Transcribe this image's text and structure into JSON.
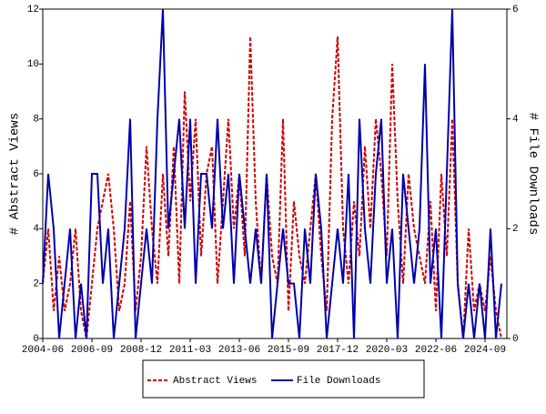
{
  "chart_data": {
    "type": "line",
    "x": [
      "2004-06",
      "2004-09",
      "2004-12",
      "2005-03",
      "2005-06",
      "2005-09",
      "2005-12",
      "2006-03",
      "2006-06",
      "2006-09",
      "2006-12",
      "2007-03",
      "2007-06",
      "2007-09",
      "2007-12",
      "2008-03",
      "2008-06",
      "2008-09",
      "2008-12",
      "2009-03",
      "2009-06",
      "2009-09",
      "2009-12",
      "2010-03",
      "2010-06",
      "2010-09",
      "2010-12",
      "2011-03",
      "2011-06",
      "2011-09",
      "2011-12",
      "2012-03",
      "2012-06",
      "2012-09",
      "2012-12",
      "2013-03",
      "2013-06",
      "2013-09",
      "2013-12",
      "2014-03",
      "2014-06",
      "2014-09",
      "2014-12",
      "2015-03",
      "2015-06",
      "2015-09",
      "2015-12",
      "2016-03",
      "2016-06",
      "2016-09",
      "2016-12",
      "2017-03",
      "2017-06",
      "2017-09",
      "2017-12",
      "2018-03",
      "2018-06",
      "2018-09",
      "2018-12",
      "2019-03",
      "2019-06",
      "2019-09",
      "2019-12",
      "2020-03",
      "2020-06",
      "2020-09",
      "2020-12",
      "2021-03",
      "2021-06",
      "2021-09",
      "2021-12",
      "2022-03",
      "2022-06",
      "2022-09",
      "2022-12",
      "2023-03",
      "2023-06",
      "2023-09",
      "2023-12",
      "2024-03",
      "2024-06",
      "2024-09",
      "2024-12",
      "2025-03",
      "2025-06"
    ],
    "series": [
      {
        "name": "Abstract Views",
        "color": "#cc0000",
        "dash": true,
        "values": [
          2,
          4,
          1,
          3,
          1,
          2,
          4,
          1,
          0,
          2,
          4,
          5,
          6,
          4,
          1,
          2,
          5,
          1,
          3,
          7,
          4,
          2,
          6,
          3,
          7,
          2,
          9,
          5,
          8,
          3,
          6,
          7,
          2,
          5,
          8,
          4,
          6,
          3,
          11,
          5,
          2,
          6,
          3,
          2,
          8,
          1,
          5,
          3,
          2,
          4,
          6,
          3,
          1,
          8,
          11,
          4,
          2,
          5,
          3,
          7,
          4,
          8,
          6,
          3,
          10,
          5,
          2,
          6,
          4,
          3,
          2,
          5,
          1,
          6,
          3,
          8,
          2,
          0,
          4,
          1,
          2,
          1,
          3,
          1,
          0
        ]
      },
      {
        "name": "File Downloads",
        "color": "#0000aa",
        "dash": false,
        "axis": "y2",
        "values": [
          1,
          3,
          2,
          0,
          1,
          2,
          0,
          1,
          0,
          3,
          3,
          1,
          2,
          0,
          1,
          2,
          4,
          0,
          1,
          2,
          1,
          4,
          6,
          2,
          3,
          4,
          2,
          4,
          1,
          3,
          3,
          2,
          4,
          2,
          3,
          1,
          3,
          2,
          1,
          2,
          1,
          3,
          0,
          1,
          2,
          1,
          1,
          0,
          2,
          1,
          3,
          2,
          0,
          1,
          2,
          1,
          3,
          0,
          4,
          2,
          1,
          3,
          4,
          1,
          2,
          0,
          3,
          2,
          1,
          2,
          5,
          1,
          2,
          0,
          3,
          6,
          1,
          0,
          1,
          0,
          1,
          0,
          2,
          0,
          1
        ]
      }
    ],
    "xlim": [
      "2004-06",
      "2025-09"
    ],
    "xticks": [
      "2004-06",
      "2006-09",
      "2008-12",
      "2011-03",
      "2013-06",
      "2015-09",
      "2017-12",
      "2020-03",
      "2022-06",
      "2024-09"
    ],
    "ylim": [
      0,
      12
    ],
    "yticks": [
      0,
      2,
      4,
      6,
      8,
      10,
      12
    ],
    "y2lim": [
      0,
      6
    ],
    "y2ticks": [
      0,
      2,
      4,
      6
    ],
    "ylabel": "# Abstract Views",
    "y2label": "# File Downloads"
  }
}
